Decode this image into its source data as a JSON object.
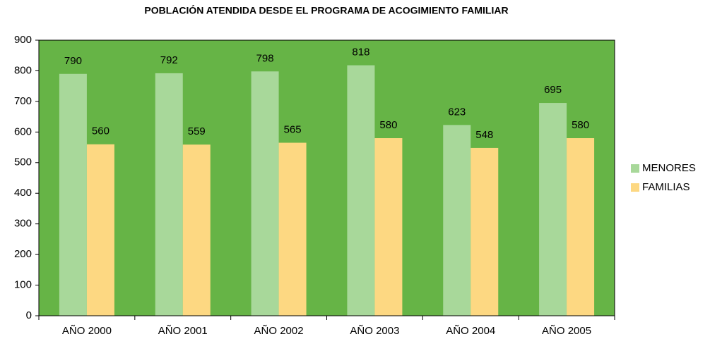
{
  "chart_data": {
    "type": "bar",
    "title": "POBLACIÓN ATENDIDA DESDE EL PROGRAMA DE ACOGIMIENTO FAMILIAR",
    "categories": [
      "AÑO 2000",
      "AÑO 2001",
      "AÑO 2002",
      "AÑO 2003",
      "AÑO 2004",
      "AÑO 2005"
    ],
    "series": [
      {
        "name": "MENORES",
        "color": "#a8d89a",
        "values": [
          790,
          792,
          798,
          818,
          623,
          695
        ]
      },
      {
        "name": "FAMILIAS",
        "color": "#fdd882",
        "values": [
          560,
          559,
          565,
          580,
          548,
          580
        ]
      }
    ],
    "ylim": [
      0,
      900
    ],
    "yticks": [
      0,
      100,
      200,
      300,
      400,
      500,
      600,
      700,
      800,
      900
    ],
    "background": "#66b446",
    "legend": "right"
  }
}
